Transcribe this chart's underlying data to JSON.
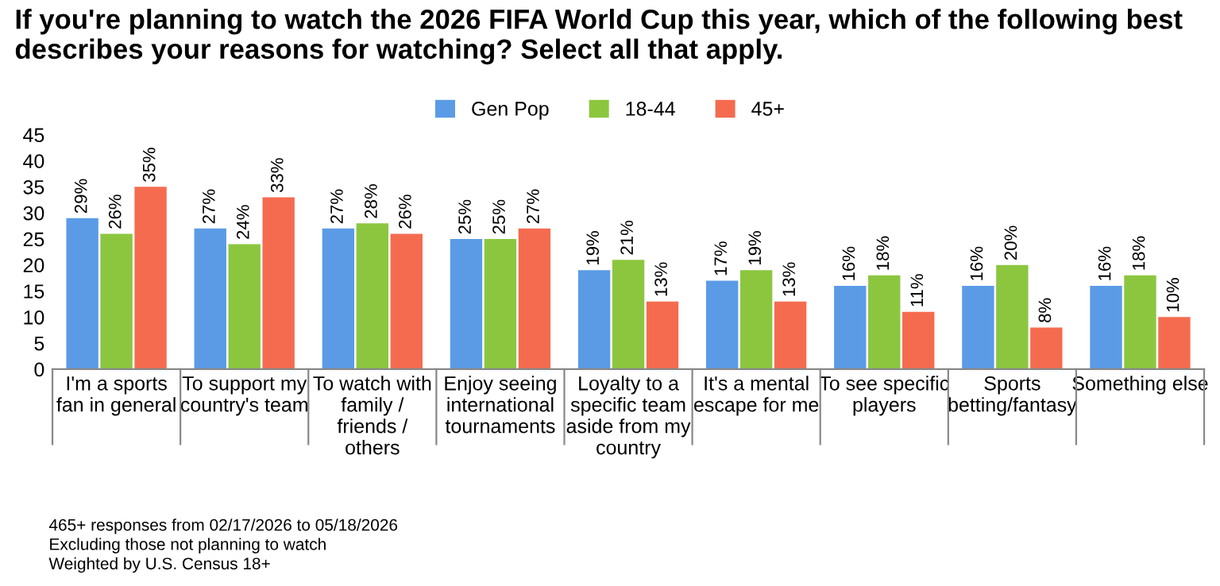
{
  "chart_data": {
    "type": "bar",
    "title": "If you're planning to watch the 2026 FIFA World Cup this year, which of the following best describes your reasons for watching? Select all that apply.",
    "categories": [
      "I'm a sports fan in general",
      "To support my country's team",
      "To watch with family / friends / others",
      "Enjoy seeing international tournaments",
      "Loyalty to a specific team aside from my country",
      "It's a mental escape for me",
      "To see specific players",
      "Sports betting/fantasy",
      "Something else"
    ],
    "series": [
      {
        "name": "Gen Pop",
        "color": "#5b9be6",
        "values": [
          29,
          27,
          27,
          25,
          19,
          17,
          16,
          16,
          16
        ],
        "value_labels": [
          "29%",
          "27%",
          "27%",
          "25%",
          "19%",
          "17%",
          "16%",
          "16%",
          "16%"
        ]
      },
      {
        "name": "18-44",
        "color": "#8cc63f",
        "values": [
          26,
          24,
          28,
          25,
          21,
          19,
          18,
          20,
          18
        ],
        "value_labels": [
          "26%",
          "24%",
          "28%",
          "25%",
          "21%",
          "19%",
          "18%",
          "20%",
          "18%"
        ]
      },
      {
        "name": "45+",
        "color": "#f56b50",
        "values": [
          35,
          33,
          26,
          27,
          13,
          13,
          11,
          8,
          10
        ],
        "value_labels": [
          "35%",
          "33%",
          "26%",
          "27%",
          "13%",
          "13%",
          "11%",
          "8%",
          "10%"
        ]
      }
    ],
    "ylim": [
      0,
      45
    ],
    "yticks": [
      0,
      5,
      10,
      15,
      20,
      25,
      30,
      35,
      40,
      45
    ],
    "grid": false,
    "legend": "top",
    "annotations": [
      "465+ responses from 02/17/2026 to 05/18/2026",
      "Excluding those not planning to watch",
      "Weighted by U.S. Census 18+"
    ]
  }
}
